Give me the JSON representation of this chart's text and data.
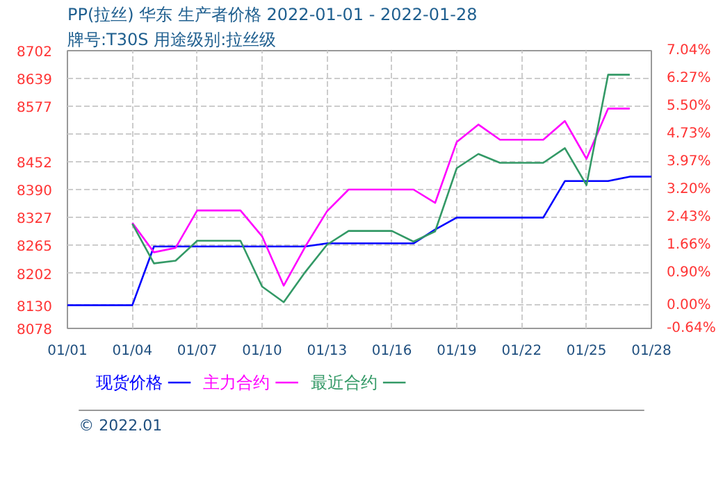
{
  "chart_data": {
    "type": "line",
    "title": "PP(拉丝) 华东 生产者价格 2022-01-01 - 2022-01-28",
    "subtitle": "牌号:T30S 用途级别:拉丝级",
    "x": [
      "2022-01-01",
      "2022-01-02",
      "2022-01-03",
      "2022-01-04",
      "2022-01-05",
      "2022-01-06",
      "2022-01-07",
      "2022-01-08",
      "2022-01-09",
      "2022-01-10",
      "2022-01-11",
      "2022-01-12",
      "2022-01-13",
      "2022-01-14",
      "2022-01-15",
      "2022-01-16",
      "2022-01-17",
      "2022-01-18",
      "2022-01-19",
      "2022-01-20",
      "2022-01-21",
      "2022-01-22",
      "2022-01-23",
      "2022-01-24",
      "2022-01-25",
      "2022-01-26",
      "2022-01-27",
      "2022-01-28"
    ],
    "series": [
      {
        "name": "现货价格",
        "color": "#0000ff",
        "values": [
          8130,
          8130,
          8130,
          8130,
          8262,
          8262,
          8262,
          8262,
          8262,
          8262,
          8262,
          8262,
          8269,
          8269,
          8269,
          8269,
          8269,
          8300,
          8327,
          8327,
          8327,
          8327,
          8327,
          8409,
          8409,
          8409,
          8419,
          8419
        ]
      },
      {
        "name": "主力合约",
        "color": "#ff00ff",
        "values": [
          null,
          null,
          null,
          8315,
          8249,
          8259,
          8343,
          8343,
          8343,
          8285,
          8174,
          8262,
          8341,
          8390,
          8390,
          8390,
          8390,
          8360,
          8497,
          8536,
          8502,
          8502,
          8502,
          8544,
          8459,
          8572,
          8572,
          null
        ]
      },
      {
        "name": "最近合约",
        "color": "#339966",
        "values": [
          null,
          null,
          null,
          8313,
          8224,
          8230,
          8275,
          8275,
          8275,
          8172,
          8137,
          8205,
          8266,
          8297,
          8297,
          8297,
          8273,
          8296,
          8438,
          8470,
          8450,
          8450,
          8450,
          8483,
          8400,
          8648,
          8648,
          null
        ]
      }
    ],
    "xlim": [
      "2022-01-01",
      "2022-01-28"
    ],
    "xticks": [
      {
        "value": "2022-01-01",
        "label": "01/01"
      },
      {
        "value": "2022-01-04",
        "label": "01/04"
      },
      {
        "value": "2022-01-07",
        "label": "01/07"
      },
      {
        "value": "2022-01-10",
        "label": "01/10"
      },
      {
        "value": "2022-01-13",
        "label": "01/13"
      },
      {
        "value": "2022-01-16",
        "label": "01/16"
      },
      {
        "value": "2022-01-19",
        "label": "01/19"
      },
      {
        "value": "2022-01-22",
        "label": "01/22"
      },
      {
        "value": "2022-01-25",
        "label": "01/25"
      },
      {
        "value": "2022-01-28",
        "label": "01/28"
      }
    ],
    "ylim": [
      8078,
      8702
    ],
    "yticks": [
      8078,
      8130,
      8202,
      8265,
      8327,
      8390,
      8452,
      {
        "value": 8515,
        "label": null
      },
      8577,
      8639,
      8702
    ],
    "y2lim": [
      -0.64,
      7.04
    ],
    "y2ticks": [
      {
        "value": -0.64,
        "label": "-0.64%"
      },
      {
        "value": 0,
        "label": "0.00%"
      },
      {
        "value": 0.9,
        "label": "0.90%"
      },
      {
        "value": 1.66,
        "label": "1.66%"
      },
      {
        "value": 2.43,
        "label": "2.43%"
      },
      {
        "value": 3.2,
        "label": "3.20%"
      },
      {
        "value": 3.97,
        "label": "3.97%"
      },
      {
        "value": 4.73,
        "label": "4.73%"
      },
      {
        "value": 5.5,
        "label": "5.50%"
      },
      {
        "value": 6.27,
        "label": "6.27%"
      },
      {
        "value": 7.04,
        "label": "7.04%"
      }
    ],
    "grid": true,
    "legend": "bottom",
    "line_style": "solid",
    "marker": "none",
    "annotations": [
      "© 2022.01"
    ]
  }
}
